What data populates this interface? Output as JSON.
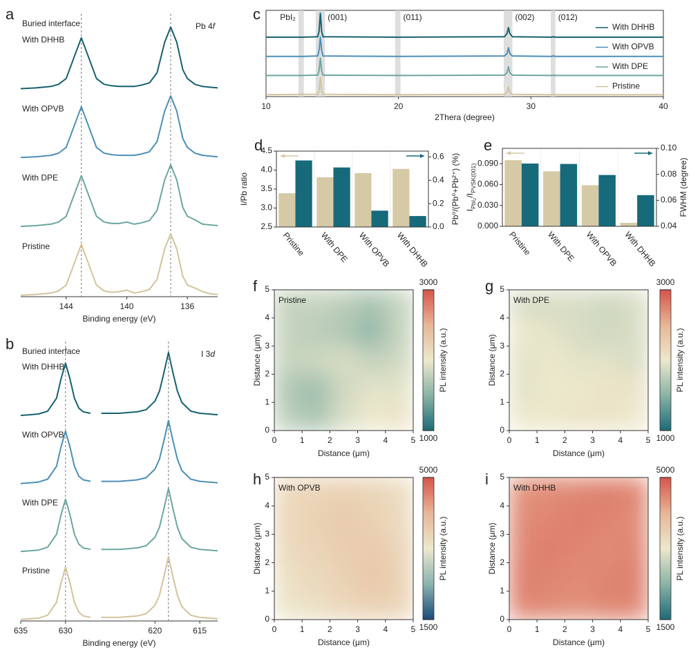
{
  "chart_data": [
    {
      "panel": "a",
      "type": "line",
      "title": "Buried interface",
      "annotation": [
        {
          "text": "Pb 4"
        },
        {
          "text": "f",
          "italic": true
        }
      ],
      "xlabel": "Binding energy (eV)",
      "xlim": [
        147,
        134
      ],
      "ylim": [
        0,
        3.95
      ],
      "xticks": [
        144,
        140,
        136
      ],
      "ref_lines": [
        143,
        137.1
      ],
      "x": [
        147,
        146,
        145,
        144.5,
        144,
        143.5,
        143,
        142.5,
        142,
        141.5,
        141,
        140.5,
        140,
        139.5,
        139,
        138.5,
        138,
        137.5,
        137.1,
        136.7,
        136.3,
        136,
        135.5,
        135,
        134.5,
        134
      ],
      "series": [
        {
          "name": "With DHHB",
          "color": "#14606e",
          "values": [
            2.87,
            2.88,
            2.9,
            2.93,
            3.01,
            3.29,
            3.57,
            3.29,
            3.01,
            2.93,
            2.91,
            2.9,
            2.9,
            2.9,
            2.92,
            2.95,
            3.09,
            3.51,
            3.72,
            3.51,
            3.13,
            3.01,
            2.93,
            2.9,
            2.89,
            2.88
          ]
        },
        {
          "name": "With OPVB",
          "color": "#4b8fb8",
          "values": [
            1.92,
            1.93,
            1.95,
            1.98,
            2.06,
            2.34,
            2.62,
            2.34,
            2.06,
            1.98,
            1.96,
            1.95,
            1.95,
            1.95,
            1.97,
            2.0,
            2.14,
            2.56,
            2.77,
            2.56,
            2.18,
            2.06,
            1.98,
            1.95,
            1.94,
            1.93
          ]
        },
        {
          "name": "With DPE",
          "color": "#6aa6a0",
          "values": [
            0.97,
            0.98,
            1.0,
            1.03,
            1.11,
            1.39,
            1.67,
            1.39,
            1.11,
            1.03,
            1.01,
            1.01,
            1.03,
            1.0,
            1.02,
            1.05,
            1.19,
            1.61,
            1.82,
            1.61,
            1.23,
            1.11,
            1.06,
            1.0,
            0.99,
            0.98
          ]
        },
        {
          "name": "Pristine",
          "color": "#d3c39a",
          "values": [
            0.02,
            0.03,
            0.05,
            0.08,
            0.16,
            0.44,
            0.72,
            0.44,
            0.16,
            0.08,
            0.06,
            0.07,
            0.09,
            0.05,
            0.07,
            0.1,
            0.24,
            0.66,
            0.87,
            0.66,
            0.28,
            0.16,
            0.12,
            0.07,
            0.04,
            0.03
          ]
        }
      ]
    },
    {
      "panel": "b",
      "type": "line",
      "title": "Buried interface",
      "annotation": [
        {
          "text": "I 3"
        },
        {
          "text": "d",
          "italic": true
        }
      ],
      "xlabel": "Binding energy (eV)",
      "xlim": [
        635,
        613
      ],
      "ylim": [
        0,
        3.95
      ],
      "xticks": [
        635,
        630,
        620,
        615
      ],
      "ref_lines": [
        630,
        618.5
      ],
      "x": [
        635,
        634,
        633,
        632,
        631,
        630.5,
        630,
        629.5,
        629,
        628.5,
        628,
        627.2,
        626.5,
        626,
        625,
        624,
        623,
        622,
        621,
        620,
        619.5,
        619,
        618.5,
        618,
        617.5,
        617,
        616,
        615,
        614,
        613
      ],
      "series": [
        {
          "name": "With DHHB",
          "color": "#14606e",
          "values": [
            2.87,
            2.88,
            2.89,
            2.93,
            3.11,
            3.38,
            3.6,
            3.38,
            3.11,
            2.97,
            2.92,
            2.9,
            null,
            2.9,
            2.9,
            2.9,
            2.91,
            2.92,
            2.95,
            3.07,
            3.21,
            3.47,
            3.75,
            3.47,
            3.21,
            3.05,
            2.93,
            2.9,
            2.89,
            2.88
          ]
        },
        {
          "name": "With OPVB",
          "color": "#4b8fb8",
          "values": [
            1.92,
            1.93,
            1.94,
            1.98,
            2.16,
            2.43,
            2.65,
            2.43,
            2.16,
            2.02,
            1.97,
            1.95,
            null,
            1.95,
            1.95,
            1.95,
            1.96,
            1.97,
            2.0,
            2.12,
            2.26,
            2.52,
            2.8,
            2.52,
            2.26,
            2.1,
            1.98,
            1.95,
            1.94,
            1.93
          ]
        },
        {
          "name": "With DPE",
          "color": "#6aa6a0",
          "values": [
            0.97,
            0.98,
            0.99,
            1.03,
            1.21,
            1.48,
            1.7,
            1.48,
            1.21,
            1.07,
            1.02,
            1.0,
            null,
            1.0,
            1.0,
            1.0,
            1.01,
            1.02,
            1.05,
            1.17,
            1.31,
            1.57,
            1.85,
            1.57,
            1.31,
            1.15,
            1.03,
            1.0,
            0.99,
            0.98
          ]
        },
        {
          "name": "Pristine",
          "color": "#d3c39a",
          "values": [
            0.02,
            0.03,
            0.04,
            0.08,
            0.26,
            0.53,
            0.75,
            0.53,
            0.26,
            0.12,
            0.07,
            0.05,
            null,
            0.05,
            0.05,
            0.05,
            0.06,
            0.07,
            0.1,
            0.22,
            0.36,
            0.62,
            0.9,
            0.62,
            0.36,
            0.2,
            0.08,
            0.05,
            0.04,
            0.03
          ]
        }
      ]
    },
    {
      "panel": "c",
      "type": "line",
      "frame": true,
      "legend": "right",
      "xlabel": "2Thera (degree)",
      "xlim": [
        10,
        40
      ],
      "ylim": [
        -0.1,
        4.4
      ],
      "xticks": [
        10,
        20,
        30,
        40
      ],
      "bands": [
        {
          "range": [
            12.45,
            12.85
          ],
          "label": "PbI₂"
        },
        {
          "range": [
            13.75,
            14.45
          ],
          "label": "(001)"
        },
        {
          "range": [
            19.75,
            20.15
          ],
          "label": "(011)"
        },
        {
          "range": [
            27.95,
            28.6
          ],
          "label": "(002)"
        },
        {
          "range": [
            31.5,
            31.85
          ],
          "label": "(012)"
        }
      ],
      "x": [
        10,
        12.6,
        12.7,
        12.8,
        13.9,
        14.0,
        14.1,
        14.2,
        14.3,
        19.9,
        20.0,
        20.1,
        28.0,
        28.2,
        28.3,
        28.4,
        28.6,
        31.6,
        31.7,
        31.8,
        40
      ],
      "series": [
        {
          "name": "With DHHB",
          "color": "#14606e",
          "values": [
            3,
            3,
            3,
            3,
            3.02,
            3.3,
            4.25,
            3.3,
            3.02,
            3,
            3,
            3,
            3.02,
            3.2,
            3.5,
            3.2,
            3.02,
            3,
            3.03,
            3,
            3
          ]
        },
        {
          "name": "With OPVB",
          "color": "#4b8fb8",
          "values": [
            2,
            2,
            2,
            2,
            2.02,
            2.3,
            3.0,
            2.3,
            2.02,
            2,
            2,
            2,
            2.02,
            2.15,
            2.45,
            2.15,
            2.02,
            2,
            2.03,
            2,
            2
          ]
        },
        {
          "name": "With DPE",
          "color": "#6aa6a0",
          "values": [
            1,
            1,
            1,
            1,
            1.02,
            1.25,
            1.9,
            1.25,
            1.02,
            1,
            1,
            1,
            1.02,
            1.15,
            1.45,
            1.15,
            1.02,
            1,
            1.02,
            1,
            1
          ]
        },
        {
          "name": "Pristine",
          "color": "#d3c39a",
          "values": [
            0,
            0.02,
            0.05,
            0.02,
            0.02,
            0.2,
            0.9,
            0.2,
            0.02,
            0,
            0.01,
            0,
            0.02,
            0.12,
            0.4,
            0.12,
            0.02,
            0,
            0.02,
            0,
            0
          ]
        }
      ]
    },
    {
      "panel": "d",
      "type": "bar",
      "categories": [
        "Pristine",
        "With DPE",
        "With OPVB",
        "With DHHB"
      ],
      "ylabel": "I/Pb ratio",
      "y2label": "Pb⁰/(Pb⁰+Pb²⁺) (%)",
      "ylim": [
        2.5,
        4.5
      ],
      "yticks": [
        2.5,
        {
          "value": 3,
          "label": "3.0"
        },
        3.5,
        {
          "value": 4,
          "label": "4.0"
        },
        4.5
      ],
      "y2lim": [
        0,
        0.65
      ],
      "y2ticks": [
        {
          "value": 0,
          "label": "0.0"
        },
        0.2,
        0.4,
        0.6
      ],
      "series": [
        {
          "color": "#d6c9a6",
          "values": [
            3.39,
            3.81,
            3.92,
            4.03
          ]
        },
        {
          "color": "#166a7a",
          "axis": "y2",
          "values": [
            0.57,
            0.51,
            0.14,
            0.094
          ]
        }
      ]
    },
    {
      "panel": "e",
      "type": "bar",
      "categories": [
        "Pristine",
        "With DPE",
        "With OPVB",
        "With DHHB"
      ],
      "ylabel": [
        {
          "text": "I"
        },
        {
          "text": "PbI₂",
          "sub": true
        },
        {
          "text": "/I"
        },
        {
          "text": "PVSK(001)",
          "sub": true
        }
      ],
      "y2label": "FWHM (degree)",
      "ylim": [
        0,
        0.112
      ],
      "yticks": [
        {
          "value": 0,
          "label": "0.000"
        },
        {
          "value": 0.03,
          "label": "0.030"
        },
        {
          "value": 0.06,
          "label": "0.060"
        },
        {
          "value": 0.09,
          "label": "0.090"
        }
      ],
      "y2lim": [
        0.04,
        0.1
      ],
      "y2ticks": [
        0.04,
        0.06,
        0.08,
        {
          "value": 0.1,
          "label": "0.10"
        }
      ],
      "series": [
        {
          "color": "#d6c9a6",
          "values": [
            0.095,
            0.079,
            0.059,
            0.005
          ]
        },
        {
          "color": "#166a7a",
          "axis": "y2",
          "values": [
            0.0883,
            0.088,
            0.0795,
            0.064
          ]
        }
      ]
    },
    {
      "panel": "f",
      "type": "heatmap",
      "title": "Pristine",
      "xlabel": "Distance (μm)",
      "ylabel": "Distance (μm)",
      "xlim": [
        0,
        5
      ],
      "ylim": [
        0,
        5
      ],
      "xticks": [
        0,
        1,
        2,
        3,
        4,
        5
      ],
      "yticks": [
        0,
        1,
        2,
        3,
        4,
        5
      ],
      "x": [
        0.5,
        1.5,
        2.5,
        3.5,
        4.5
      ],
      "y": [
        0.5,
        1.5,
        2.5,
        3.5,
        4.5
      ],
      "values": [
        [
          1750,
          1650,
          1900,
          2000,
          2050
        ],
        [
          1700,
          1600,
          1850,
          1950,
          1950
        ],
        [
          1800,
          1850,
          1900,
          1800,
          1850
        ],
        [
          1800,
          1750,
          1700,
          1550,
          1800
        ],
        [
          1800,
          1800,
          1750,
          1650,
          1800
        ]
      ],
      "clim": [
        1000,
        3000
      ],
      "cticks": [
        1000,
        3000
      ],
      "clabel": "PL intensity (a.u.)",
      "colormap": [
        "#1d6b78",
        "#8ab3a6",
        "#ece8cc",
        "#e8b597",
        "#d6544a"
      ]
    },
    {
      "panel": "g",
      "type": "heatmap",
      "title": "With DPE",
      "xlabel": "Distance (μm)",
      "ylabel": "Distance (μm)",
      "xlim": [
        0,
        5
      ],
      "ylim": [
        0,
        5
      ],
      "xticks": [
        0,
        1,
        2,
        3,
        4,
        5
      ],
      "yticks": [
        0,
        1,
        2,
        3,
        4,
        5
      ],
      "x": [
        0.5,
        1.5,
        2.5,
        3.5,
        4.5
      ],
      "y": [
        0.5,
        1.5,
        2.5,
        3.5,
        4.5
      ],
      "values": [
        [
          2000,
          2000,
          2050,
          2050,
          2000
        ],
        [
          1950,
          2000,
          2000,
          2050,
          2050
        ],
        [
          1950,
          2000,
          1950,
          1950,
          1900
        ],
        [
          2000,
          1950,
          1900,
          1850,
          1900
        ],
        [
          1900,
          1900,
          1900,
          1850,
          1900
        ]
      ],
      "clim": [
        1000,
        3000
      ],
      "cticks": [
        1000,
        3000
      ],
      "clabel": "PL intensity (a.u.)",
      "colormap": [
        "#1d6b78",
        "#8ab3a6",
        "#ece8cc",
        "#e8b597",
        "#d6544a"
      ]
    },
    {
      "panel": "h",
      "type": "heatmap",
      "title": "With OPVB",
      "xlabel": "Distance (μm)",
      "ylabel": "Distance (μm)",
      "xlim": [
        0,
        5
      ],
      "ylim": [
        0,
        5
      ],
      "xticks": [
        0,
        1,
        2,
        3,
        4,
        5
      ],
      "yticks": [
        0,
        1,
        2,
        3,
        4,
        5
      ],
      "x": [
        0.5,
        1.5,
        2.5,
        3.5,
        4.5
      ],
      "y": [
        0.5,
        1.5,
        2.5,
        3.5,
        4.5
      ],
      "values": [
        [
          3300,
          3400,
          3550,
          3650,
          3600
        ],
        [
          3400,
          3500,
          3650,
          3800,
          3650
        ],
        [
          3500,
          3600,
          3700,
          3750,
          3600
        ],
        [
          3550,
          3650,
          3750,
          3650,
          3500
        ],
        [
          3500,
          3600,
          3650,
          3600,
          3450
        ]
      ],
      "clim": [
        1500,
        5000
      ],
      "cticks": [
        1500,
        5000
      ],
      "clabel": "PL intensity (a.u.)",
      "colormap": [
        "#1a4a7a",
        "#8ab3b0",
        "#ece8cc",
        "#e8b597",
        "#d6544a"
      ]
    },
    {
      "panel": "i",
      "type": "heatmap",
      "title": "With DHHB",
      "xlabel": "Distance (μm)",
      "ylabel": "Distance (μm)",
      "xlim": [
        0,
        5
      ],
      "ylim": [
        0,
        5
      ],
      "xticks": [
        0,
        1,
        2,
        3,
        4,
        5
      ],
      "yticks": [
        0,
        1,
        2,
        3,
        4,
        5
      ],
      "x": [
        0.5,
        1.5,
        2.5,
        3.5,
        4.5
      ],
      "y": [
        0.5,
        1.5,
        2.5,
        3.5,
        4.5
      ],
      "values": [
        [
          4550,
          4500,
          4450,
          4550,
          4550
        ],
        [
          4600,
          4550,
          4500,
          4550,
          4600
        ],
        [
          4550,
          4600,
          4550,
          4500,
          4550
        ],
        [
          4500,
          4550,
          4600,
          4550,
          4500
        ],
        [
          4450,
          4500,
          4550,
          4600,
          4550
        ]
      ],
      "clim": [
        1500,
        5000
      ],
      "cticks": [
        1500,
        5000
      ],
      "clabel": "PL intensity (a.u.)",
      "colormap": [
        "#1d6b78",
        "#8ab3a6",
        "#ece8cc",
        "#e8b597",
        "#d6544a"
      ]
    }
  ]
}
